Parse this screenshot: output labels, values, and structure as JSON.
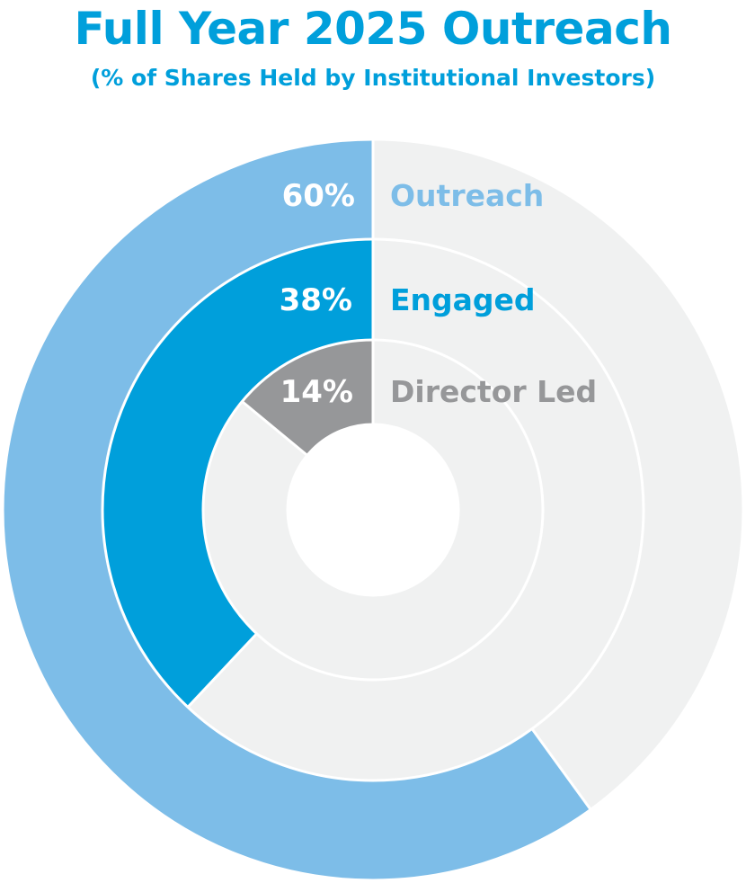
{
  "colors": {
    "title": "#009fdb",
    "background_ring": "#f0f1f1",
    "divider": "#ffffff"
  },
  "chart_data": {
    "type": "nested-donut",
    "title": "Full Year 2025 Outreach",
    "subtitle": "(% of Shares Held by Institutional Investors)",
    "unit": "%",
    "direction": "counter-clockwise from top",
    "series": [
      {
        "name": "Outreach",
        "value": 60,
        "label": "60%",
        "color": "#7dbde8"
      },
      {
        "name": "Engaged",
        "value": 38,
        "label": "38%",
        "color": "#009fdb"
      },
      {
        "name": "Director Led",
        "value": 14,
        "label": "14%",
        "color": "#969799"
      }
    ]
  }
}
